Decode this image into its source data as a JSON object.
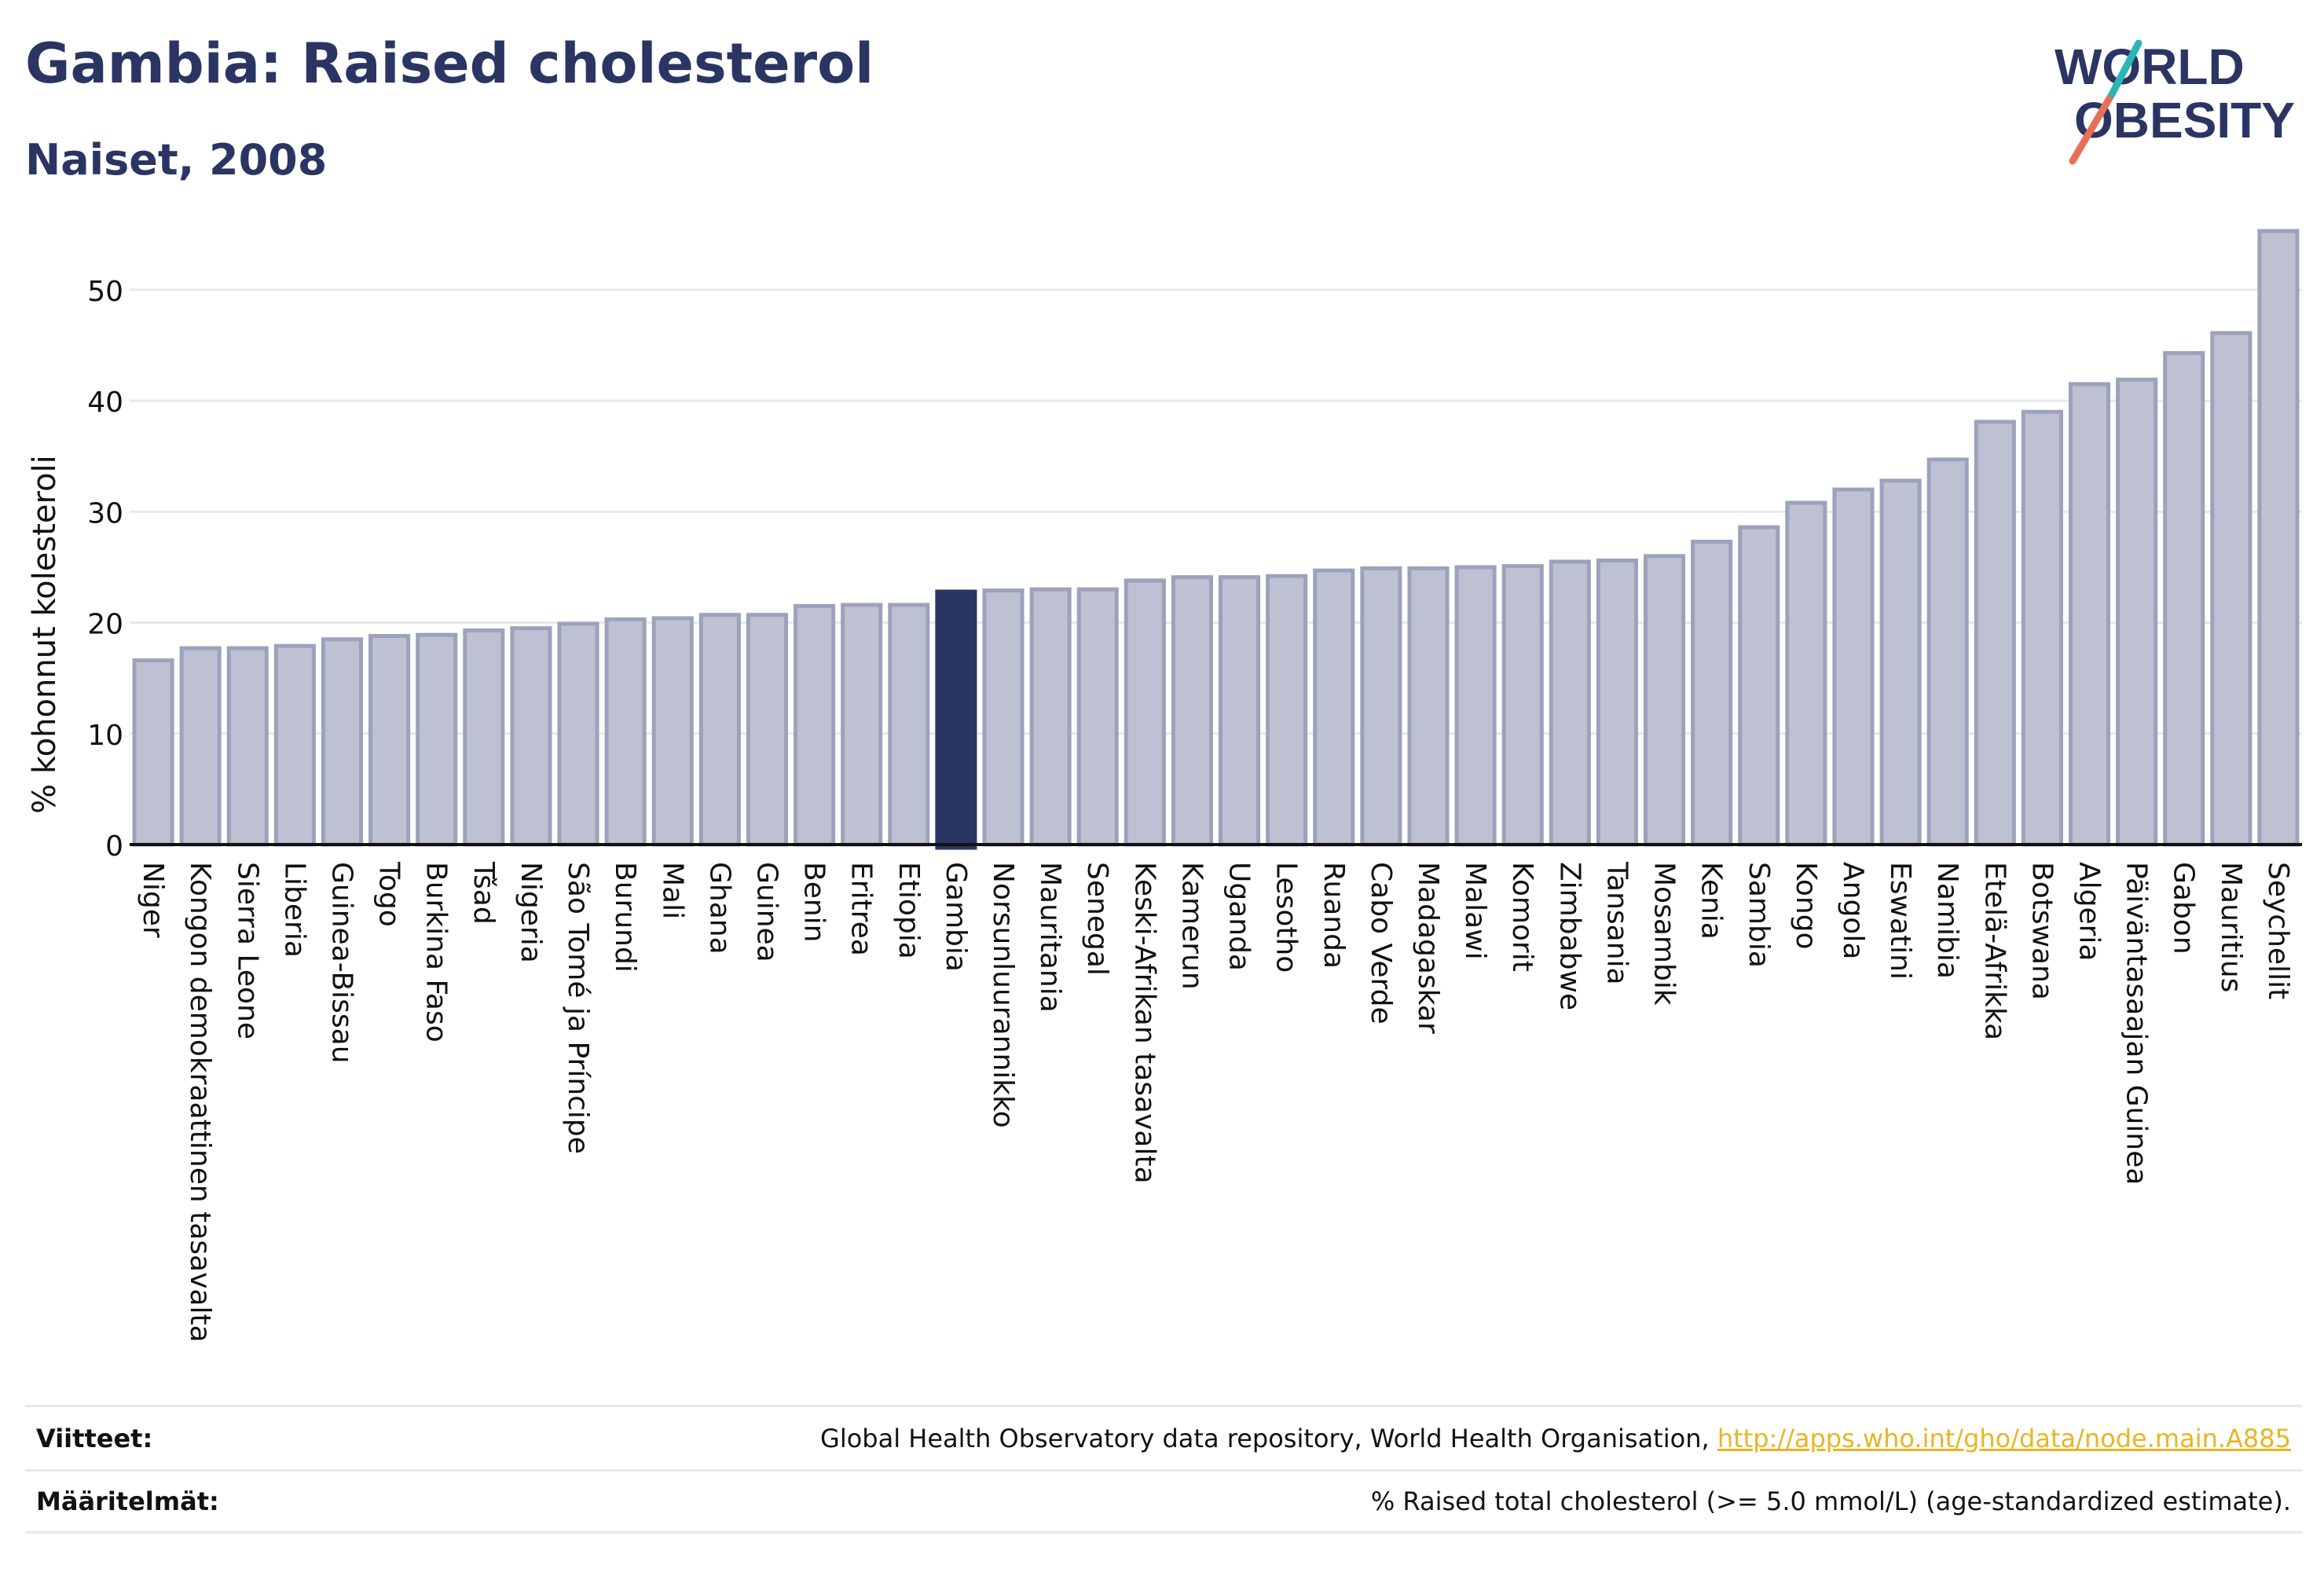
{
  "header": {
    "title": "Gambia: Raised cholesterol",
    "subtitle": "Naiset, 2008"
  },
  "logo": {
    "line1": "WORLD",
    "line2": "OBESITY"
  },
  "chart_data": {
    "type": "bar",
    "ylabel": "% kohonnut kolesteroli",
    "xlabel": "",
    "ylim": [
      0,
      57
    ],
    "yticks": [
      0,
      10,
      20,
      30,
      40,
      50
    ],
    "grid": true,
    "highlight": "Gambia",
    "colors": {
      "bar": "#bdc1d2",
      "bar_border": "#9ca2bb",
      "highlight": "#2a3563",
      "grid": "#e6e8ee"
    },
    "categories": [
      "Niger",
      "Kongon demokraattinen tasavalta",
      "Sierra Leone",
      "Liberia",
      "Guinea-Bissau",
      "Togo",
      "Burkina Faso",
      "Tšad",
      "Nigeria",
      "São Tomé ja Príncipe",
      "Burundi",
      "Mali",
      "Ghana",
      "Guinea",
      "Benin",
      "Eritrea",
      "Etiopia",
      "Gambia",
      "Norsunluurannikko",
      "Mauritania",
      "Senegal",
      "Keski-Afrikan tasavalta",
      "Kamerun",
      "Uganda",
      "Lesotho",
      "Ruanda",
      "Cabo Verde",
      "Madagaskar",
      "Malawi",
      "Komorit",
      "Zimbabwe",
      "Tansania",
      "Mosambik",
      "Kenia",
      "Sambia",
      "Kongo",
      "Angola",
      "Eswatini",
      "Namibia",
      "Etelä-Afrikka",
      "Botswana",
      "Algeria",
      "Päiväntasaajan Guinea",
      "Gabon",
      "Mauritius",
      "Seychellit"
    ],
    "values": [
      16.6,
      17.7,
      17.7,
      17.9,
      18.5,
      18.8,
      18.9,
      19.3,
      19.5,
      19.9,
      20.3,
      20.4,
      20.7,
      20.7,
      21.5,
      21.6,
      21.6,
      22.8,
      22.9,
      23.0,
      23.0,
      23.8,
      24.1,
      24.1,
      24.2,
      24.7,
      24.9,
      24.9,
      25.0,
      25.1,
      25.5,
      25.6,
      26.0,
      27.3,
      28.6,
      30.8,
      32.0,
      32.8,
      34.7,
      38.1,
      39.0,
      41.5,
      41.9,
      44.3,
      46.1,
      55.3
    ]
  },
  "footer": {
    "references_label": "Viitteet:",
    "references_text": "Global Health Observatory data repository, World Health Organisation, ",
    "references_link": "http://apps.who.int/gho/data/node.main.A885",
    "definitions_label": "Määritelmät:",
    "definitions_text": "% Raised total cholesterol (>= 5.0 mmol/L) (age-standardized estimate)."
  }
}
